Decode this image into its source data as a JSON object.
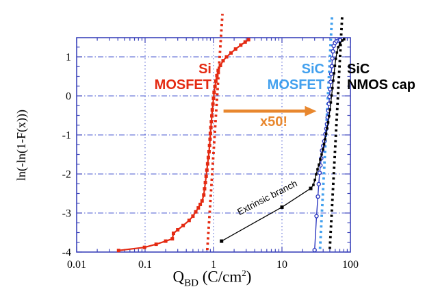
{
  "labels": {
    "y_axis": "ln(-ln(1-F(x)))",
    "x_axis": {
      "main": "Q",
      "sub": "BD",
      "mid": " (C/cm",
      "sup": "2",
      "end": ")"
    },
    "si": {
      "line1": "Si",
      "line2": "MOSFET"
    },
    "sic_mosfet": {
      "line1": "SiC",
      "line2": "MOSFET"
    },
    "sic_nmos": {
      "line1": "SiC",
      "line2": "NMOS cap"
    },
    "x50": "x50!",
    "extrinsic": "Extrinsic branch"
  },
  "colors": {
    "frame": "#3c44bb",
    "grid": "#4a5ad0",
    "red": "#e42a12",
    "blue": "#2c38c0",
    "lightblue": "#42a0ee",
    "black": "#000000",
    "orange": "#e8872e",
    "tick_text": "#000000"
  },
  "chart_data": {
    "type": "scatter",
    "title": "",
    "xlabel": "Q_BD (C/cm^2)",
    "ylabel": "ln(-ln(1-F(x)))",
    "x_axis": {
      "scale": "log",
      "min": 0.01,
      "max": 100,
      "major_ticks": [
        {
          "v": 0.01,
          "label": "0.01"
        },
        {
          "v": 0.1,
          "label": "0.1"
        },
        {
          "v": 1,
          "label": "1"
        },
        {
          "v": 10,
          "label": "10"
        },
        {
          "v": 100,
          "label": "100"
        }
      ]
    },
    "y_axis": {
      "scale": "linear",
      "min": -4,
      "max": 1.49,
      "minor_step": 0.25,
      "major_ticks": [
        {
          "v": 1,
          "label": "1"
        },
        {
          "v": 0,
          "label": "0"
        },
        {
          "v": -1,
          "label": "-1"
        },
        {
          "v": -2,
          "label": "-2"
        },
        {
          "v": -3,
          "label": "-3"
        },
        {
          "v": -4,
          "label": "-4"
        }
      ]
    },
    "grid": {
      "vertical": [
        0.1,
        1,
        10
      ],
      "horizontal": [
        1,
        0,
        -1,
        -2,
        -3
      ]
    },
    "series": [
      {
        "name": "SiC MOSFET",
        "color": "#2c38c0",
        "marker": "circle-open",
        "marker_size": 5,
        "line_width": 1.4,
        "points": [
          [
            30,
            -3.95
          ],
          [
            32,
            -3.08
          ],
          [
            33.5,
            -2.58
          ],
          [
            34.5,
            -2.26
          ],
          [
            35.5,
            -1.97
          ],
          [
            36.5,
            -1.78
          ],
          [
            37.5,
            -1.6
          ],
          [
            38.5,
            -1.4
          ],
          [
            40,
            -1.28
          ],
          [
            41.5,
            -1.16
          ],
          [
            43,
            -0.98
          ],
          [
            44.5,
            -0.84
          ],
          [
            45.5,
            -0.72
          ],
          [
            46.5,
            -0.55
          ],
          [
            47.5,
            -0.38
          ],
          [
            48.5,
            -0.2
          ],
          [
            49.5,
            -0.02
          ],
          [
            50.5,
            0.17
          ],
          [
            51.5,
            0.36
          ],
          [
            52.5,
            0.56
          ],
          [
            53.5,
            0.76
          ],
          [
            54.5,
            0.96
          ],
          [
            55.5,
            1.14
          ],
          [
            57,
            1.28
          ],
          [
            59.5,
            1.36
          ],
          [
            63,
            1.4
          ],
          [
            67.5,
            1.42
          ],
          [
            71,
            1.43
          ]
        ]
      },
      {
        "name": "SiC NMOS cap extrinsic branch",
        "color": "#000000",
        "marker": "square",
        "marker_size": 5,
        "line_width": 1.3,
        "points": [
          [
            1.31,
            -3.72
          ],
          [
            10,
            -2.85
          ],
          [
            26.3,
            -2.37
          ]
        ]
      },
      {
        "name": "SiC NMOS cap",
        "color": "#000000",
        "marker": "square",
        "marker_size": 3.6,
        "line_width": 1.3,
        "points": [
          [
            26.3,
            -2.37
          ],
          [
            28.8,
            -2.28
          ],
          [
            30.3,
            -2.15
          ],
          [
            31.6,
            -2.01
          ],
          [
            33.1,
            -1.88
          ],
          [
            34.7,
            -1.76
          ],
          [
            36.3,
            -1.63
          ],
          [
            38,
            -1.5
          ],
          [
            39.8,
            -1.37
          ],
          [
            41.2,
            -1.24
          ],
          [
            42.7,
            -1.11
          ],
          [
            44.2,
            -0.97
          ],
          [
            45.7,
            -0.83
          ],
          [
            47.3,
            -0.68
          ],
          [
            48.8,
            -0.52
          ],
          [
            50.3,
            -0.35
          ],
          [
            51.8,
            -0.17
          ],
          [
            53.2,
            0.01
          ],
          [
            54.7,
            0.2
          ],
          [
            56.2,
            0.39
          ],
          [
            57.8,
            0.58
          ],
          [
            59.4,
            0.77
          ],
          [
            61.2,
            0.95
          ],
          [
            63.5,
            1.11
          ],
          [
            66.5,
            1.25
          ],
          [
            70.5,
            1.35
          ],
          [
            76,
            1.42
          ],
          [
            81,
            1.45
          ]
        ]
      },
      {
        "name": "Si MOSFET",
        "color": "#e42a12",
        "marker": "square",
        "marker_size": 5,
        "line_width": 2.2,
        "points": [
          [
            0.041,
            -3.96
          ],
          [
            0.098,
            -3.88
          ],
          [
            0.145,
            -3.8
          ],
          [
            0.2,
            -3.72
          ],
          [
            0.25,
            -3.66
          ],
          [
            0.26,
            -3.52
          ],
          [
            0.3,
            -3.43
          ],
          [
            0.36,
            -3.32
          ],
          [
            0.44,
            -3.19
          ],
          [
            0.5,
            -3.08
          ],
          [
            0.55,
            -2.97
          ],
          [
            0.6,
            -2.87
          ],
          [
            0.64,
            -2.78
          ],
          [
            0.68,
            -2.69
          ],
          [
            0.72,
            -2.54
          ],
          [
            0.74,
            -2.38
          ],
          [
            0.76,
            -2.22
          ],
          [
            0.78,
            -2.06
          ],
          [
            0.8,
            -1.9
          ],
          [
            0.82,
            -1.74
          ],
          [
            0.84,
            -1.58
          ],
          [
            0.86,
            -1.43
          ],
          [
            0.875,
            -1.27
          ],
          [
            0.89,
            -1.11
          ],
          [
            0.9,
            -0.96
          ],
          [
            0.915,
            -0.81
          ],
          [
            0.93,
            -0.66
          ],
          [
            0.945,
            -0.51
          ],
          [
            0.96,
            -0.36
          ],
          [
            0.98,
            -0.21
          ],
          [
            1.0,
            -0.06
          ],
          [
            1.02,
            0.09
          ],
          [
            1.05,
            0.24
          ],
          [
            1.08,
            0.38
          ],
          [
            1.12,
            0.52
          ],
          [
            1.17,
            0.65
          ],
          [
            1.26,
            0.78
          ],
          [
            1.38,
            0.9
          ],
          [
            1.55,
            1.0
          ],
          [
            1.8,
            1.1
          ],
          [
            2.1,
            1.2
          ],
          [
            2.5,
            1.3
          ],
          [
            2.9,
            1.38
          ],
          [
            3.25,
            1.44
          ]
        ]
      }
    ],
    "fit_lines": [
      {
        "name": "si-mosfet-fit",
        "color": "#e42a12",
        "from": [
          0.81,
          -3.95
        ],
        "to": [
          1.35,
          2.1
        ]
      },
      {
        "name": "sic-mosfet-fit",
        "color": "#42a0ee",
        "from": [
          36,
          -3.92
        ],
        "to": [
          54,
          2.07
        ]
      },
      {
        "name": "sic-nmos-cap-fit",
        "color": "#000000",
        "from": [
          50,
          -3.92
        ],
        "to": [
          76,
          2.07
        ]
      }
    ],
    "arrow": {
      "y": -0.39,
      "x_from": 1.4,
      "x_to": 32,
      "color": "#e8872e",
      "label": "x50!"
    }
  }
}
